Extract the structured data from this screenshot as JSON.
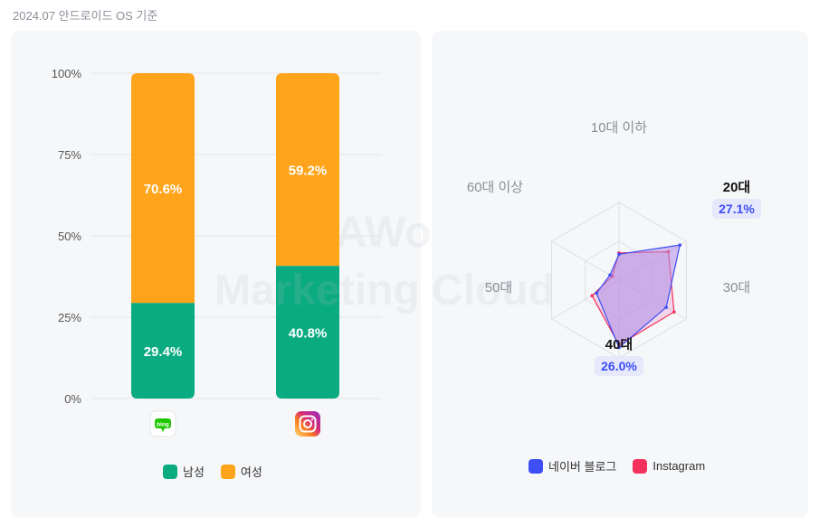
{
  "caption": "2024.07 안드로이드 OS 기준",
  "watermark": [
    "IGAWorks",
    "Marketing Cloud"
  ],
  "colors": {
    "male": "#0bab82",
    "female": "#ffa41b",
    "naver": "#3d4ef5",
    "instagram": "#f2325d",
    "naver_icon": "#1ec800"
  },
  "chart_data": [
    {
      "type": "bar",
      "stacked": true,
      "categories": [
        "네이버 블로그",
        "Instagram"
      ],
      "category_icons": [
        "naver-blog-icon",
        "instagram-icon"
      ],
      "series": [
        {
          "name": "남성",
          "values": [
            29.4,
            40.8
          ]
        },
        {
          "name": "여성",
          "values": [
            70.6,
            59.2
          ]
        }
      ],
      "value_labels": [
        [
          "29.4%",
          "40.8%"
        ],
        [
          "70.6%",
          "59.2%"
        ]
      ],
      "yticks": [
        "0%",
        "25%",
        "50%",
        "75%",
        "100%"
      ],
      "ylim": [
        0,
        100
      ],
      "grid": true,
      "legend": "bottom"
    },
    {
      "type": "radar",
      "axes": [
        "10대 이하",
        "20대",
        "30대",
        "40대",
        "50대",
        "60대 이상"
      ],
      "series": [
        {
          "name": "네이버 블로그",
          "values": [
            10.0,
            27.1,
            21.0,
            26.0,
            10.0,
            4.0
          ]
        },
        {
          "name": "Instagram",
          "values": [
            10.5,
            22.0,
            24.5,
            25.0,
            12.0,
            3.0
          ]
        }
      ],
      "rmax": 30,
      "highlight_labels": {
        "20대": "27.1%",
        "40대": "26.0%"
      },
      "legend": "bottom"
    }
  ]
}
